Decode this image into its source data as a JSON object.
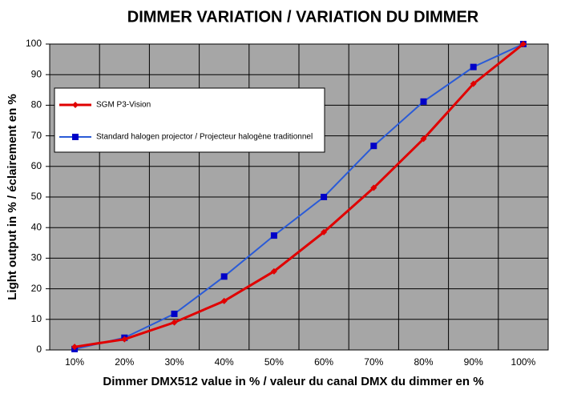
{
  "chart_data": {
    "type": "line",
    "title": "DIMMER VARIATION / VARIATION DU DIMMER",
    "x_label": "Dimmer DMX512 value in % / valeur du canal DMX du dimmer en %",
    "y_label": "Light output in % / éclairement en %",
    "categories": [
      "10%",
      "20%",
      "30%",
      "40%",
      "50%",
      "60%",
      "70%",
      "80%",
      "90%",
      "100%"
    ],
    "series": [
      {
        "name": "SGM P3-Vision",
        "color": "#e00000",
        "values": [
          1,
          3.5,
          9,
          16,
          25.7,
          38.5,
          53,
          69,
          87,
          100
        ]
      },
      {
        "name": "Standard halogen projector / Projecteur halogène traditionnel",
        "color": "#2a5bd7",
        "values": [
          0.3,
          4,
          11.8,
          24,
          37.4,
          50,
          66.7,
          81.2,
          92.5,
          100
        ]
      }
    ],
    "ylim": [
      0,
      100
    ],
    "yticks": [
      0,
      10,
      20,
      30,
      40,
      50,
      60,
      70,
      80,
      90,
      100
    ],
    "grid": true
  }
}
